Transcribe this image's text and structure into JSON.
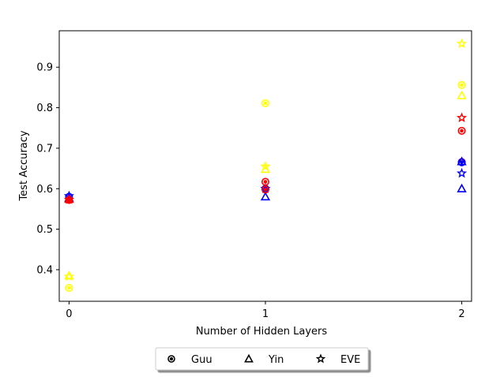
{
  "chart_data": {
    "type": "scatter",
    "xlabel": "Number of Hidden Layers",
    "ylabel": "Test Accuracy",
    "xlim": [
      -0.05,
      2.05
    ],
    "ylim": [
      0.322,
      0.99
    ],
    "xticks": [
      0,
      1,
      2
    ],
    "yticks": [
      0.4,
      0.5,
      0.6,
      0.7,
      0.8,
      0.9
    ],
    "x_tick_labels": [
      "0",
      "1",
      "2"
    ],
    "y_tick_labels": [
      "0.4",
      "0.5",
      "0.6",
      "0.7",
      "0.8",
      "0.9"
    ],
    "legend_position": "below plot, center",
    "colors": {
      "red": "#ff0000",
      "blue": "#0000ff",
      "yellow": "#ffff00"
    },
    "legend": [
      {
        "label": "Guu",
        "marker": "circle"
      },
      {
        "label": "Yin",
        "marker": "triangle"
      },
      {
        "label": "EVE",
        "marker": "star"
      }
    ],
    "points": [
      {
        "x": 0,
        "y": 0.58,
        "marker": "circle",
        "color": "blue"
      },
      {
        "x": 0,
        "y": 0.577,
        "marker": "triangle",
        "color": "blue"
      },
      {
        "x": 0,
        "y": 0.582,
        "marker": "star",
        "color": "blue"
      },
      {
        "x": 0,
        "y": 0.572,
        "marker": "circle",
        "color": "red"
      },
      {
        "x": 0,
        "y": 0.574,
        "marker": "triangle",
        "color": "red"
      },
      {
        "x": 0,
        "y": 0.573,
        "marker": "star",
        "color": "red"
      },
      {
        "x": 0,
        "y": 0.355,
        "marker": "circle",
        "color": "yellow"
      },
      {
        "x": 0,
        "y": 0.385,
        "marker": "triangle",
        "color": "yellow"
      },
      {
        "x": 0,
        "y": 0.383,
        "marker": "star",
        "color": "yellow"
      },
      {
        "x": 1,
        "y": 0.6,
        "marker": "circle",
        "color": "blue"
      },
      {
        "x": 1,
        "y": 0.58,
        "marker": "triangle",
        "color": "blue"
      },
      {
        "x": 1,
        "y": 0.6,
        "marker": "star",
        "color": "blue"
      },
      {
        "x": 1,
        "y": 0.617,
        "marker": "circle",
        "color": "red"
      },
      {
        "x": 1,
        "y": 0.598,
        "marker": "circle",
        "color": "red"
      },
      {
        "x": 1,
        "y": 0.648,
        "marker": "triangle",
        "color": "yellow"
      },
      {
        "x": 1,
        "y": 0.655,
        "marker": "star",
        "color": "yellow"
      },
      {
        "x": 1,
        "y": 0.811,
        "marker": "circle",
        "color": "yellow"
      },
      {
        "x": 2,
        "y": 0.958,
        "marker": "star",
        "color": "yellow"
      },
      {
        "x": 2,
        "y": 0.856,
        "marker": "circle",
        "color": "yellow"
      },
      {
        "x": 2,
        "y": 0.83,
        "marker": "triangle",
        "color": "yellow"
      },
      {
        "x": 2,
        "y": 0.775,
        "marker": "star",
        "color": "red"
      },
      {
        "x": 2,
        "y": 0.743,
        "marker": "circle",
        "color": "red"
      },
      {
        "x": 2,
        "y": 0.666,
        "marker": "circle",
        "color": "red"
      },
      {
        "x": 2,
        "y": 0.665,
        "marker": "circle",
        "color": "blue"
      },
      {
        "x": 2,
        "y": 0.667,
        "marker": "triangle",
        "color": "blue"
      },
      {
        "x": 2,
        "y": 0.638,
        "marker": "star",
        "color": "blue"
      },
      {
        "x": 2,
        "y": 0.6,
        "marker": "triangle",
        "color": "blue"
      }
    ]
  }
}
